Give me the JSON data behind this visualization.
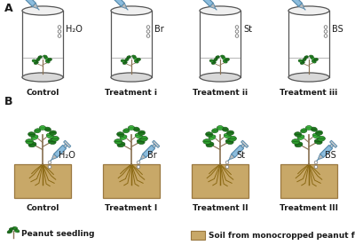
{
  "background_color": "#ffffff",
  "panel_A_label": "A",
  "panel_B_label": "B",
  "row_A_labels": [
    "Control",
    "Treatment i",
    "Treatment ii",
    "Treatment iii"
  ],
  "row_B_labels": [
    "Control",
    "Treatment I",
    "Treatment II",
    "Treatment III"
  ],
  "treatment_labels": [
    "H₂O",
    "Br",
    "St",
    "BS"
  ],
  "legend_plant_label": "Peanut seedling",
  "legend_soil_label": "Soil from monocropped peanut field",
  "cylinder_edge_color": "#555555",
  "plant_green_dark": "#1f7a1f",
  "plant_green_mid": "#2d9c2d",
  "plant_green_light": "#3db83d",
  "root_color": "#8B6914",
  "soil_color": "#c8a868",
  "soil_edge_color": "#9a7840",
  "syringe_body_color": "#8bbcdd",
  "syringe_edge_color": "#5588aa",
  "text_color": "#1a1a1a",
  "hole_color": "#e0e0e0",
  "stem_color": "#8B7355",
  "water_color": "#e8f4fc"
}
